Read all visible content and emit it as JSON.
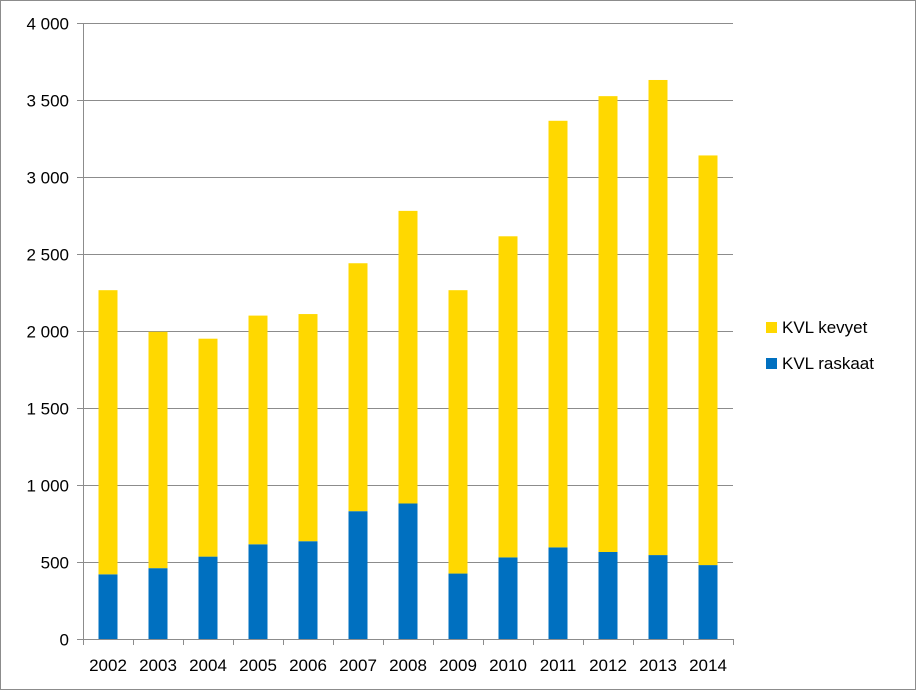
{
  "chart_data": {
    "type": "bar",
    "stacked": true,
    "categories": [
      "2002",
      "2003",
      "2004",
      "2005",
      "2006",
      "2007",
      "2008",
      "2009",
      "2010",
      "2011",
      "2012",
      "2013",
      "2014"
    ],
    "series": [
      {
        "name": "KVL raskaat",
        "color": "#0070C0",
        "values": [
          420,
          460,
          535,
          615,
          635,
          830,
          880,
          425,
          530,
          595,
          565,
          545,
          480
        ]
      },
      {
        "name": "KVL kevyet",
        "color": "#FFD800",
        "values": [
          1845,
          1535,
          1415,
          1485,
          1475,
          1610,
          1900,
          1840,
          2085,
          2770,
          2960,
          3085,
          2660
        ]
      }
    ],
    "ylim": [
      0,
      4000
    ],
    "yticks": [
      0,
      500,
      1000,
      1500,
      2000,
      2500,
      3000,
      3500,
      4000
    ],
    "ytick_labels": [
      "0",
      "500",
      "1 000",
      "1 500",
      "2 000",
      "2 500",
      "3 000",
      "3 500",
      "4 000"
    ],
    "grid": true,
    "legend_position": "right",
    "legend_order": [
      "KVL kevyet",
      "KVL raskaat"
    ],
    "title": "",
    "xlabel": "",
    "ylabel": ""
  }
}
